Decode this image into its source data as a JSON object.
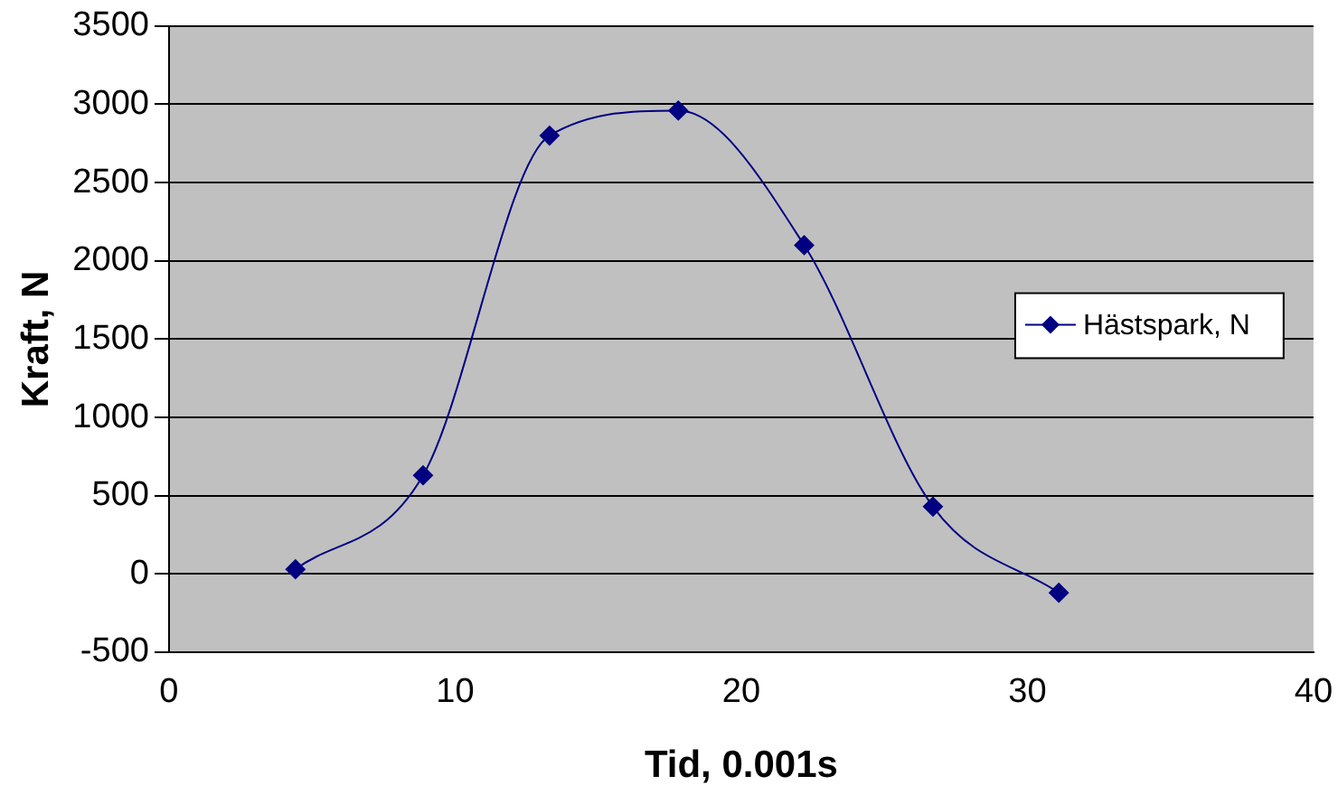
{
  "chart_data": {
    "type": "line",
    "xlabel": "Tid, 0.001s",
    "ylabel": "Kraft, N",
    "x": [
      4.42,
      8.88,
      13.3,
      17.8,
      22.2,
      26.7,
      31.1
    ],
    "series": [
      {
        "name": "Hästspark, N",
        "color": "#000080",
        "values": [
          30,
          630,
          2800,
          2960,
          2100,
          430,
          -120
        ]
      }
    ],
    "xlim": [
      0,
      40
    ],
    "xticks": [
      0,
      10,
      20,
      30,
      40
    ],
    "ylim": [
      -500,
      3500
    ],
    "yticks": [
      -500,
      0,
      500,
      1000,
      1500,
      2000,
      2500,
      3000,
      3500
    ],
    "grid": "y",
    "legend": "right",
    "marker": "diamond",
    "line_style": "solid"
  }
}
